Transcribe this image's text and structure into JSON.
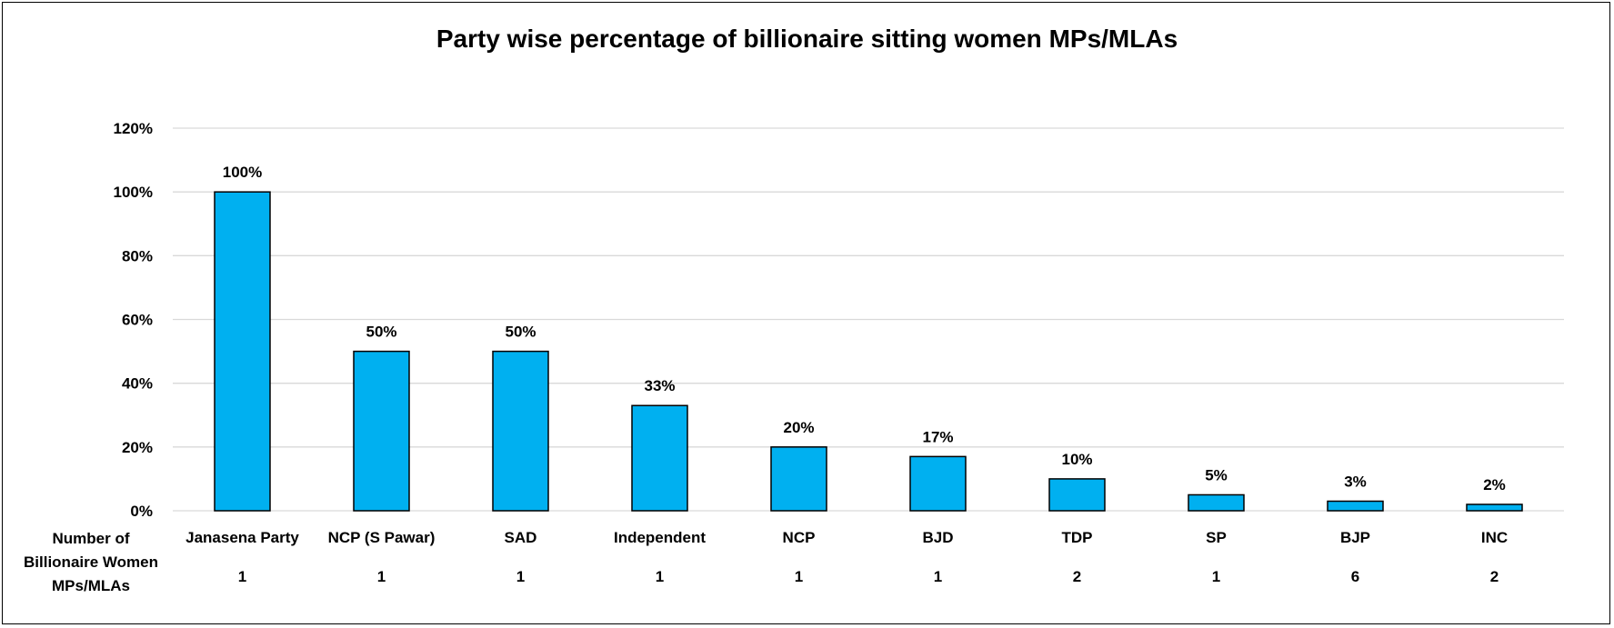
{
  "chart_data": {
    "type": "bar",
    "title": "Party wise percentage of billionaire sitting women MPs/MLAs",
    "xlabel": "",
    "ylabel": "",
    "ylim": [
      0,
      120
    ],
    "yticks": [
      "0%",
      "20%",
      "40%",
      "60%",
      "80%",
      "100%",
      "120%"
    ],
    "ytick_values": [
      0,
      20,
      40,
      60,
      80,
      100,
      120
    ],
    "grid": true,
    "categories": [
      "Janasena Party",
      "NCP (S Pawar)",
      "SAD",
      "Independent",
      "NCP",
      "BJD",
      "TDP",
      "SP",
      "BJP",
      "INC"
    ],
    "values": [
      100,
      50,
      50,
      33,
      20,
      17,
      10,
      5,
      3,
      2
    ],
    "data_labels": [
      "100%",
      "50%",
      "50%",
      "33%",
      "20%",
      "17%",
      "10%",
      "5%",
      "3%",
      "2%"
    ],
    "table_row": {
      "header_lines": [
        "Number of",
        "Billionaire Women",
        "MPs/MLAs"
      ],
      "values": [
        "1",
        "1",
        "1",
        "1",
        "1",
        "1",
        "2",
        "1",
        "6",
        "2"
      ]
    },
    "colors": {
      "bar_fill": "#00b0f0",
      "bar_stroke": "#000000",
      "grid": "#d9d9d9"
    }
  }
}
